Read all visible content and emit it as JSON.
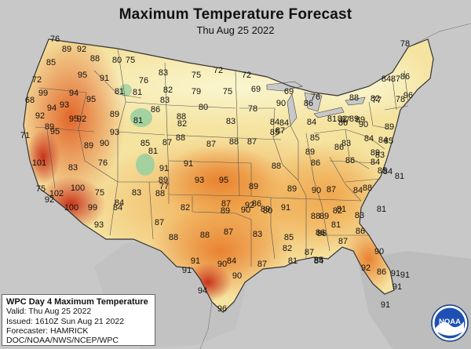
{
  "header": {
    "title": "Maximum Temperature Forecast",
    "date": "Thu Aug 25 2022"
  },
  "info_box": {
    "heading": "WPC Day 4 Maximum Temperature",
    "valid": "Valid: Thu Aug 25 2022",
    "issued": "Issued: 1610Z Sun Aug 21 2022",
    "forecaster": "Forecaster: HAMRICK",
    "agencies": "DOC/NOAA/NWS/NCEP/WPC"
  },
  "logo": {
    "text": "NOAA",
    "icon": "noaa-logo-icon"
  },
  "colors": {
    "background": "#c9c9c9",
    "water": "#c9c9c9",
    "cool": "#f7f3c0",
    "mild": "#f6dc8e",
    "warm": "#f2b458",
    "hot": "#ea8a2f",
    "very_hot": "#df5f22",
    "extreme": "#c8321a",
    "cold_high_terrain": "#8cc79a"
  },
  "temperature_labels": [
    "76",
    "89",
    "92",
    "88",
    "80",
    "75",
    "85",
    "95",
    "91",
    "72",
    "83",
    "75",
    "72",
    "72",
    "78",
    "99",
    "94",
    "81",
    "76",
    "82",
    "79",
    "75",
    "69",
    "69",
    "76",
    "87",
    "84",
    "86",
    "82",
    "96",
    "95",
    "83",
    "93",
    "94",
    "68",
    "95",
    "89",
    "86",
    "88",
    "80",
    "78",
    "90",
    "86",
    "88",
    "77",
    "78",
    "81",
    "81",
    "82",
    "87",
    "92",
    "89",
    "95",
    "92",
    "81",
    "82",
    "88",
    "83",
    "84",
    "84",
    "84",
    "86",
    "89",
    "89",
    "90",
    "89",
    "87",
    "85",
    "71",
    "101",
    "90",
    "89",
    "85",
    "93",
    "81",
    "87",
    "89",
    "87",
    "88",
    "87",
    "85",
    "83",
    "84",
    "84",
    "86",
    "85",
    "83",
    "83",
    "77",
    "91",
    "76",
    "93",
    "95",
    "91",
    "89",
    "88",
    "89",
    "86",
    "86",
    "89",
    "85",
    "84",
    "84",
    "81",
    "75",
    "102",
    "100",
    "75",
    "84",
    "83",
    "88",
    "82",
    "87",
    "86",
    "90",
    "80",
    "91",
    "89",
    "90",
    "87",
    "84",
    "88",
    "92",
    "99",
    "100",
    "87",
    "84",
    "92",
    "89",
    "89",
    "81",
    "82",
    "83",
    "89",
    "86",
    "81",
    "93",
    "88",
    "88",
    "87",
    "83",
    "85",
    "88",
    "86",
    "81",
    "87",
    "86",
    "87",
    "82",
    "85",
    "92",
    "81",
    "87",
    "86",
    "91",
    "90",
    "91",
    "84",
    "84",
    "90",
    "91",
    "94",
    "90",
    "91",
    "91",
    "91",
    "96"
  ]
}
